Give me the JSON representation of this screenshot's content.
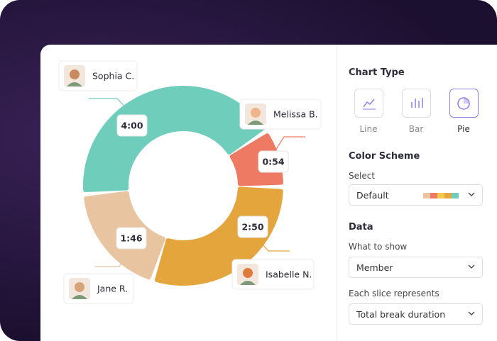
{
  "chart_data": {
    "type": "donut",
    "categories": [
      "Sophia C.",
      "Melissa B.",
      "Isabelle N.",
      "Jane R."
    ],
    "values": [
      240,
      54,
      170,
      106
    ],
    "value_labels": [
      "4:00",
      "0:54",
      "2:50",
      "1:46"
    ],
    "colors": [
      "#6fcdbb",
      "#ef7a63",
      "#e3a53c",
      "#e9c4a1"
    ]
  },
  "panel": {
    "chart_type": {
      "title": "Chart Type",
      "options": [
        "Line",
        "Bar",
        "Pie"
      ],
      "selected": "Pie"
    },
    "color_scheme": {
      "title": "Color Scheme",
      "label": "Select",
      "value": "Default"
    },
    "data": {
      "title": "Data",
      "fields": [
        {
          "label": "What to show",
          "value": "Member"
        },
        {
          "label": "Each slice represents",
          "value": "Total break duration"
        }
      ]
    }
  }
}
